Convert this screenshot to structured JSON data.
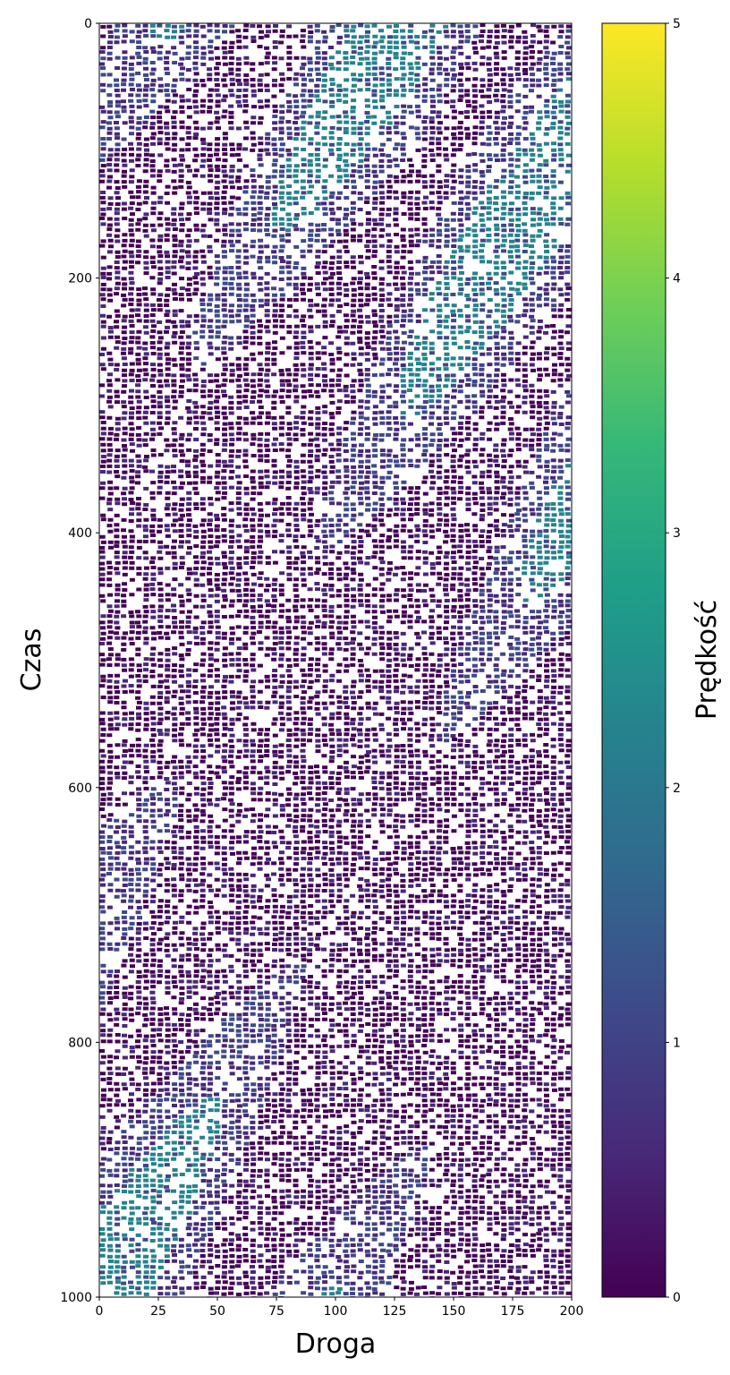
{
  "chart_data": [
    {
      "type": "scatter",
      "title": "",
      "xlabel": "Droga",
      "ylabel": "Czas",
      "xlim": [
        0,
        200
      ],
      "ylim": [
        1000,
        0
      ],
      "y_inverted": true,
      "xticks": [
        0,
        25,
        50,
        75,
        100,
        125,
        150,
        175,
        200
      ],
      "yticks": [
        0,
        200,
        400,
        600,
        800,
        1000
      ],
      "colormap": "viridis",
      "color_by": "speed",
      "background_color": "#ffffff",
      "grid": false,
      "description_of_marks": "dense space-time diagram of vehicle positions; each point colored by speed, mostly low speeds (0-1) with lighter, faster diagonal bands",
      "speed_range": [
        0,
        5
      ]
    },
    {
      "type": "colorbar",
      "label": "Prędkość",
      "range": [
        0,
        5
      ],
      "ticks": [
        0,
        1,
        2,
        3,
        4,
        5
      ],
      "colormap": "viridis",
      "colors": [
        "#440154",
        "#482878",
        "#3e4989",
        "#31688e",
        "#26828e",
        "#1f9e89",
        "#35b779",
        "#6ece58",
        "#b5de2b",
        "#fde725"
      ]
    }
  ]
}
